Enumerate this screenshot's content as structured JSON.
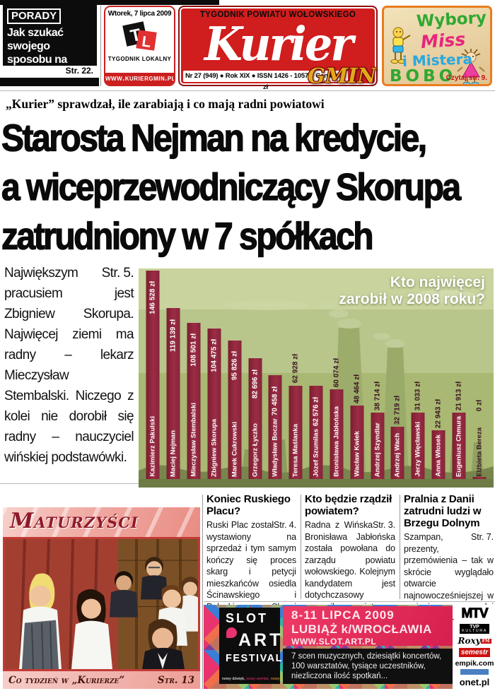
{
  "masthead": {
    "porady": {
      "label": "PORADY",
      "text": "Jak szukać swojego sposobu na promocję?",
      "page": "Str. 22."
    },
    "tl": {
      "date": "Wtorek, 7 lipca 2009",
      "logo_t": "T",
      "logo_l": "L",
      "sub": "TYGODNIK LOKALNY",
      "site": "www.kuriergmin.pl"
    },
    "kurier": {
      "tagline": "TYGODNIK POWIATU WOŁOWSKIEGO",
      "title": "Kurier",
      "suffix": "GMIN",
      "issue": "Nr 27 (949) ● Rok XIX ● ISSN 1426 - 1057 ● Cena 2,50 zł"
    },
    "bobo": {
      "l1": "Wybory",
      "l2": "Miss",
      "l3": "i Mistera",
      "l4": "BOBO",
      "cta": "Czytaj str. 9."
    }
  },
  "lead": {
    "kicker": "„Kurier” sprawdzał, ile zarabiają i co mają radni powiatowi",
    "headline_lines": [
      "Starosta Nejman na kredycie,",
      "a wiceprzewodniczący Skorupa",
      "zatrudniony w 7 spółkach"
    ],
    "standfirst": "Największym pracusiem jest Zbigniew Skorupa. Najwięcej ziemi ma radny – lekarz Mieczysław Stembalski. Niczego z kolei nie dorobił się radny – nauczyciel wińskiej podstawówki.",
    "page": "Str. 5."
  },
  "chart_data": {
    "type": "bar",
    "title": "Kto najwięcej zarobił w 2008 roku?",
    "title_lines": [
      "Kto najwięcej",
      "zarobił w 2008 roku?"
    ],
    "categories": [
      "Kazimierz Pakulski",
      "Maciej Nejman",
      "Mieczysław Stembalski",
      "Zbigniew Skorupa",
      "Marek Cukrowski",
      "Grzegorz Łyczko",
      "Władysław Boczar",
      "Teresa Maślanka",
      "Józef Szumilas",
      "Bronisława Jabłońska",
      "Wacław Kwiek",
      "Andrzej Szyndlar",
      "Andrzej Wach",
      "Jerzy Więcławski",
      "Anna Włosek",
      "Eugeniusz Chmura",
      "Elżbieta Bereza"
    ],
    "values": [
      146528,
      119139,
      108501,
      104475,
      95826,
      82696,
      70458,
      62928,
      62576,
      60074,
      48464,
      38714,
      32719,
      31033,
      22943,
      21913,
      0
    ],
    "value_labels": [
      "146 528 zł",
      "119 139 zł",
      "108 501 zł",
      "104 475 zł",
      "95 826 zł",
      "82 696 zł",
      "70 458 zł",
      "62 928 zł",
      "62 576 zł",
      "60 074 zł",
      "48 464 zł",
      "38 714 zł",
      "32 719 zł",
      "31 033 zł",
      "22 943 zł",
      "21 913 zł",
      "0 zł"
    ],
    "ylim": [
      0,
      150000
    ],
    "unit": "zł",
    "bar_color": "#8e2438",
    "legend": "none",
    "grid": false
  },
  "bottom": {
    "maturzysci": {
      "title": "Maturzyści",
      "caption": "Co tydzień w „Kurierze”",
      "page": "Str. 13"
    },
    "news": [
      {
        "heading": "Koniec Ruskiego Placu?",
        "body": "Ruski Plac został wystawiony na sprzedaż i tym samym kończy się proces skarg i petycji mieszkańców osiedla Ścinawskiego i Pułaskiego. Skargi mieszkańców Wołowa zostały odrzucone przez magistrat.",
        "page": "Str. 4."
      },
      {
        "heading": "Kto będzie rządził powiatem?",
        "body": "Radna z Wińska Bronisława Jabłońska została powołana do zarządu powiatu wołowskiego. Kolejnym kandydatem jest dotychczasowy rzecznik powiatu – Arkadiusz Muszyński.",
        "page": "Str. 3."
      },
      {
        "heading": "Pralnia z Danii zatrudni ludzi w Brzegu Dolnym",
        "body": "Szampan, prezenty, przemówienia – tak w skrócie wyglądało otwarcie najnowocześniejszej w regionie pralni chemicznej – placówki Berendsen Textile Service.",
        "page": "Str. 7."
      }
    ],
    "slot": {
      "logo1": "SLOT",
      "logo2": "ART",
      "logo3": "FESTIVAL",
      "tag": [
        "nowy dźwięk,",
        "nowy wymiar,",
        "nowy człowiek"
      ],
      "date": "8-11 LIPCA 2009",
      "place": "LUBIĄŻ k/WROCŁAWIA",
      "url": "WWW.SLOT.ART.PL",
      "desc": [
        "7 scen muzycznych, dziesiątki koncertów,",
        "100 warsztatów, tysiące uczestników,",
        "niezliczona ilość spotkań..."
      ],
      "partners": {
        "mtv": "MTV",
        "tvp_a": "TVP",
        "tvp_b": "KULTURA",
        "roxy": "Roxy",
        "roxy_tag": "FM",
        "semestr": "semestr",
        "empik": "empik.com",
        "onet": "onet.pl"
      }
    }
  },
  "colors": {
    "masthead_red": "#d01d1d",
    "bar_maroon": "#8e2438",
    "slot_pink": "#e8336e",
    "bobo_green": "#2fa832"
  }
}
